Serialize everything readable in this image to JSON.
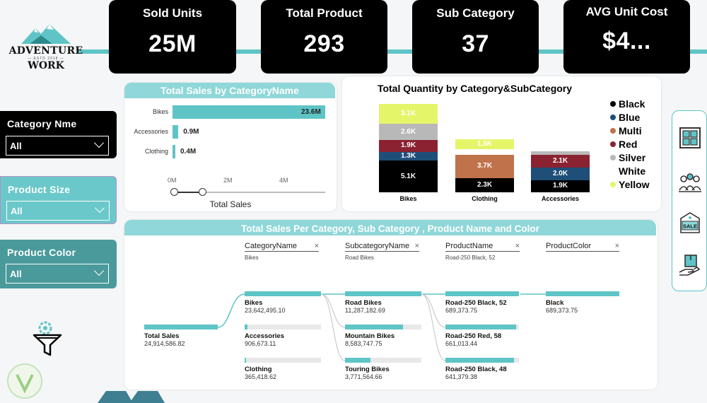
{
  "kpis": [
    {
      "title": "Sold Units",
      "value": "25M"
    },
    {
      "title": "Total Product",
      "value": "293"
    },
    {
      "title": "Sub Category",
      "value": "37"
    },
    {
      "title": "AVG Unit Cost",
      "value": "$4..."
    }
  ],
  "logo": {
    "line1": "ADVENTURE",
    "line2": "— ESTD 2018 —",
    "line3": "WORK"
  },
  "slicers": [
    {
      "title": "Category Nme",
      "value": "All",
      "bg": "#000000"
    },
    {
      "title": "Product Size",
      "value": "All",
      "bg": "#6bc8ca"
    },
    {
      "title": "Product Color",
      "value": "All",
      "bg": "#4a9a9c"
    }
  ],
  "sales_by_category": {
    "title": "Total Sales by CategoryName",
    "xlabel": "Total Sales",
    "ticks": [
      "0M",
      "2M",
      "4M"
    ],
    "chart_data": {
      "type": "bar",
      "orientation": "horizontal",
      "categories": [
        "Bikes",
        "Accessories",
        "Clothing"
      ],
      "values": [
        23.6,
        0.9,
        0.4
      ],
      "labels": [
        "23.6M",
        "0.9M",
        "0.4M"
      ],
      "unit": "M"
    }
  },
  "quantity_chart": {
    "title": "Total Quantity by Category&SubCategory",
    "legend": [
      {
        "name": "Black",
        "color": "#000000"
      },
      {
        "name": "Blue",
        "color": "#1f4e79"
      },
      {
        "name": "Multi",
        "color": "#c0734a"
      },
      {
        "name": "Red",
        "color": "#8b2231"
      },
      {
        "name": "Silver",
        "color": "#b8b8b8"
      },
      {
        "name": "White",
        "color": "#ffffff"
      },
      {
        "name": "Yellow",
        "color": "#e5f56a"
      }
    ],
    "chart_data": {
      "type": "bar",
      "stacked": true,
      "categories": [
        "Bikes",
        "Clothing",
        "Accessories"
      ],
      "series": [
        {
          "name": "Black",
          "values": [
            5.1,
            2.3,
            1.9
          ],
          "labels": [
            "5.1K",
            "2.3K",
            "1.9K"
          ]
        },
        {
          "name": "Blue",
          "values": [
            1.3,
            0,
            2.0
          ],
          "labels": [
            "1.3K",
            "",
            "2.0K"
          ]
        },
        {
          "name": "Multi",
          "values": [
            0,
            3.7,
            0
          ],
          "labels": [
            "",
            "3.7K",
            ""
          ]
        },
        {
          "name": "Red",
          "values": [
            1.9,
            0,
            2.1
          ],
          "labels": [
            "1.9K",
            "",
            "2.1K"
          ]
        },
        {
          "name": "Silver",
          "values": [
            2.6,
            0,
            0.5
          ],
          "labels": [
            "2.6K",
            "",
            ""
          ]
        },
        {
          "name": "White",
          "values": [
            0,
            0.9,
            0
          ],
          "labels": [
            "",
            "",
            ""
          ]
        },
        {
          "name": "Yellow",
          "values": [
            3.1,
            1.5,
            0
          ],
          "labels": [
            "3.1K",
            "1.5K",
            ""
          ]
        }
      ],
      "unit": "K"
    }
  },
  "decomp": {
    "title": "Total Sales Per Category, Sub Category , Product Name and Color",
    "columns": [
      {
        "header": "CategoryName",
        "selected": "Bikes"
      },
      {
        "header": "SubcategoryName",
        "selected": "Road Bikes"
      },
      {
        "header": "ProductName",
        "selected": "Road-250 Black, 52"
      },
      {
        "header": "ProductColor",
        "selected": ""
      }
    ],
    "root": {
      "name": "Total Sales",
      "value": "24,914,586.82",
      "fill": 1.0
    },
    "level1": [
      {
        "name": "Bikes",
        "value": "23,642,495.10",
        "fill": 1.0
      },
      {
        "name": "Accessories",
        "value": "906,673.11",
        "fill": 0.04
      },
      {
        "name": "Clothing",
        "value": "365,418.62",
        "fill": 0.02
      }
    ],
    "level2": [
      {
        "name": "Road Bikes",
        "value": "11,287,182.69",
        "fill": 1.0
      },
      {
        "name": "Mountain Bikes",
        "value": "8,583,747.75",
        "fill": 0.76
      },
      {
        "name": "Touring Bikes",
        "value": "3,771,564.66",
        "fill": 0.33
      }
    ],
    "level3": [
      {
        "name": "Road-250 Black, 52",
        "value": "689,373.75",
        "fill": 1.0
      },
      {
        "name": "Road-250 Red, 58",
        "value": "661,013.44",
        "fill": 0.96
      },
      {
        "name": "Road-250 Black, 48",
        "value": "641,379.38",
        "fill": 0.93
      }
    ],
    "level4": [
      {
        "name": "Black",
        "value": "689,373.75",
        "fill": 1.0
      }
    ]
  },
  "icons": [
    "dashboard-icon",
    "team-icon",
    "sale-tag-icon",
    "delivery-box-icon"
  ]
}
